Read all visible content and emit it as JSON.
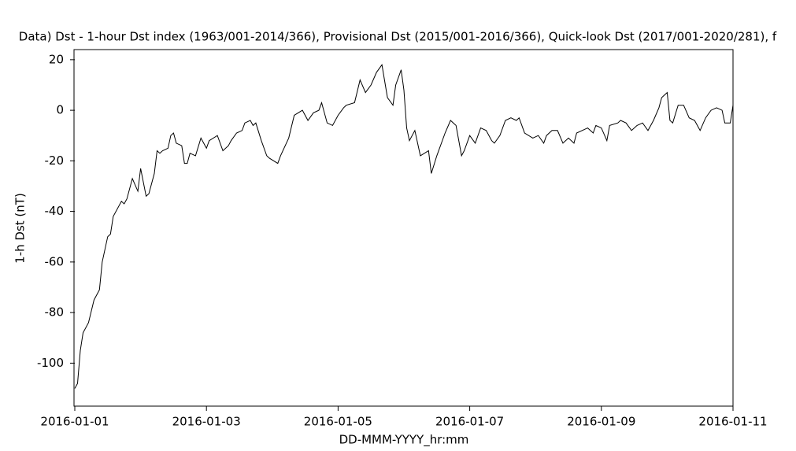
{
  "chart_data": {
    "type": "line",
    "title": "Data)  Dst - 1-hour Dst index (1963/001-2014/366), Provisional Dst (2015/001-2016/366), Quick-look Dst (2017/001-2020/281), f",
    "x_label": "DD-MMM-YYYY_hr:mm",
    "y_label": "1-h Dst (nT)",
    "color": "#000000",
    "x": [
      0,
      1,
      2,
      3,
      5,
      7,
      9,
      10,
      12,
      13,
      14,
      17,
      18,
      19,
      21,
      23,
      24,
      26,
      27,
      29,
      30,
      31,
      32,
      34,
      35,
      36,
      37,
      39,
      40,
      41,
      42,
      44,
      46,
      48,
      49,
      52,
      54,
      56,
      57,
      59,
      61,
      62,
      64,
      65,
      66,
      68,
      70,
      71,
      74,
      75,
      78,
      80,
      83,
      85,
      87,
      89,
      90,
      92,
      94,
      96,
      98,
      99,
      102,
      104,
      106,
      108,
      110,
      112,
      114,
      116,
      117,
      119,
      120,
      121,
      122,
      124,
      126,
      129,
      130,
      132,
      135,
      137,
      139,
      141,
      142,
      144,
      146,
      148,
      150,
      152,
      153,
      155,
      157,
      159,
      161,
      162,
      164,
      167,
      169,
      171,
      172,
      174,
      176,
      178,
      180,
      182,
      183,
      185,
      187,
      189,
      190,
      192,
      194,
      195,
      198,
      199,
      201,
      203,
      205,
      207,
      209,
      211,
      213,
      214,
      216,
      217,
      218,
      220,
      222,
      224,
      226,
      228,
      230,
      232,
      234,
      236,
      237,
      239,
      240
    ],
    "values": [
      -110,
      -108,
      -95,
      -88,
      -84,
      -75,
      -71,
      -60,
      -50,
      -49,
      -42,
      -36,
      -37,
      -35,
      -27,
      -32,
      -23,
      -34,
      -33,
      -25,
      -16,
      -17,
      -16,
      -15,
      -10,
      -9,
      -13,
      -14,
      -21,
      -21,
      -17,
      -18,
      -11,
      -15,
      -12,
      -10,
      -16,
      -14,
      -12,
      -9,
      -8,
      -5,
      -4,
      -6,
      -5,
      -12,
      -18,
      -19,
      -21,
      -18,
      -11,
      -2,
      0,
      -4,
      -1,
      0,
      3,
      -5,
      -6,
      -2,
      1,
      2,
      3,
      12,
      7,
      10,
      15,
      18,
      5,
      2,
      10,
      16,
      8,
      -7,
      -12,
      -8,
      -18,
      -16,
      -25,
      -18,
      -9,
      -4,
      -6,
      -18,
      -16,
      -10,
      -13,
      -7,
      -8,
      -12,
      -13,
      -10,
      -4,
      -3,
      -4,
      -3,
      -9,
      -11,
      -10,
      -13,
      -10,
      -8,
      -8,
      -13,
      -11,
      -13,
      -9,
      -8,
      -7,
      -9,
      -6,
      -7,
      -12,
      -6,
      -5,
      -4,
      -5,
      -8,
      -6,
      -5,
      -8,
      -4,
      1,
      5,
      7,
      -4,
      -5,
      2,
      2,
      -3,
      -4,
      -8,
      -3,
      0,
      1,
      0,
      -5,
      -5,
      2
    ],
    "xlim": [
      0,
      240
    ],
    "xticks": [
      {
        "value": 0,
        "label": "2016-01-01"
      },
      {
        "value": 48,
        "label": "2016-01-03"
      },
      {
        "value": 96,
        "label": "2016-01-05"
      },
      {
        "value": 144,
        "label": "2016-01-07"
      },
      {
        "value": 192,
        "label": "2016-01-09"
      },
      {
        "value": 240,
        "label": "2016-01-11"
      }
    ],
    "ylim": [
      -117,
      24
    ],
    "yticks": [
      -100,
      -80,
      -60,
      -40,
      -20,
      0,
      20
    ],
    "grid": false
  }
}
